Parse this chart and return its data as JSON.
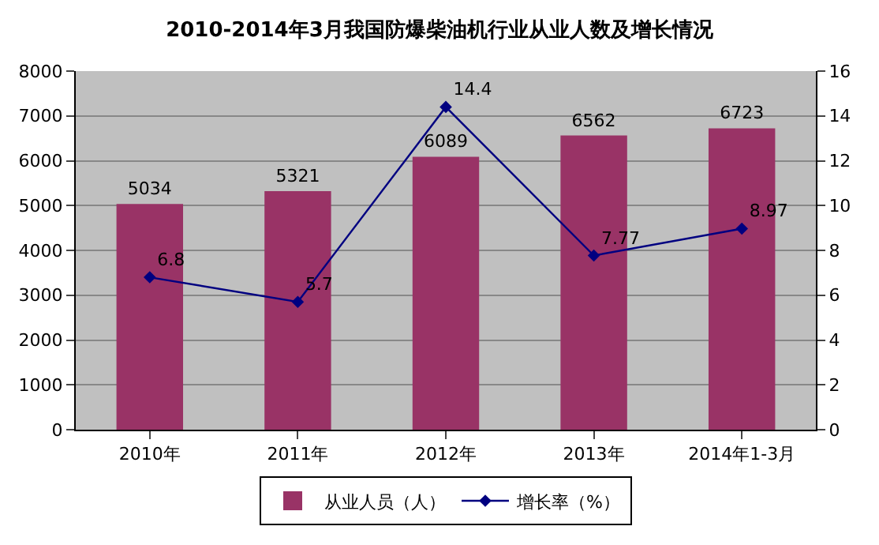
{
  "chart_data": {
    "type": "bar",
    "title": "2010-2014年3月我国防爆柴油机行业从业人数及增长情况",
    "categories": [
      "2010年",
      "2011年",
      "2012年",
      "2013年",
      "2014年1-3月"
    ],
    "series": [
      {
        "name": "从业人员（人）",
        "color": "#993366",
        "values": [
          5034,
          5321,
          6089,
          6562,
          6723
        ]
      },
      {
        "name": "增长率（%）",
        "type": "line",
        "axis": "y2",
        "color": "#000080",
        "marker": "diamond",
        "values": [
          6.8,
          5.7,
          14.4,
          7.77,
          8.97
        ]
      }
    ],
    "ylim": [
      0,
      8000
    ],
    "yticks": [
      0,
      1000,
      2000,
      3000,
      4000,
      5000,
      6000,
      7000,
      8000
    ],
    "y2lim": [
      0,
      16
    ],
    "y2ticks": [
      0,
      2,
      4,
      6,
      8,
      10,
      12,
      14,
      16
    ],
    "data_labels": true,
    "grid": "y",
    "legend": "bottom"
  }
}
